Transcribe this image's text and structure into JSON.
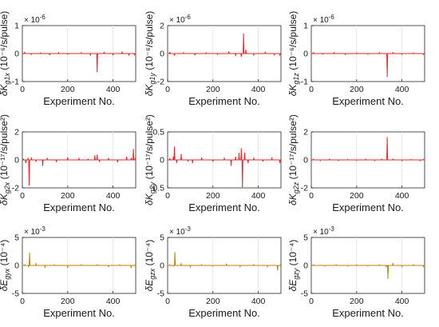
{
  "chart_data": [
    {
      "type": "line",
      "ylabel": {
        "symbol": "δK",
        "sub": "g1x",
        "unit": "(10⁻⁶/s/pulse)"
      },
      "xlabel": "Experiment No.",
      "multiplier": {
        "base": "× 10",
        "exp": "-6"
      },
      "xlim": [
        0,
        500
      ],
      "ylim": [
        -1,
        1
      ],
      "xticks": [
        "0",
        "200",
        "400"
      ],
      "yticks": [
        "1",
        "0",
        "-1"
      ],
      "yticks_values": [
        1,
        0,
        -1
      ],
      "grid": "vertical",
      "color": "#e8272a",
      "series": [
        {
          "x": [
            10,
            40,
            80,
            120,
            160,
            200,
            260,
            300,
            330,
            360,
            400,
            440,
            470,
            495
          ],
          "values": [
            0.04,
            -0.03,
            0.02,
            -0.04,
            0.03,
            -0.02,
            0.03,
            -0.05,
            -0.65,
            0.04,
            -0.04,
            0.05,
            -0.05,
            -0.04
          ]
        }
      ]
    },
    {
      "type": "line",
      "ylabel": {
        "symbol": "δK",
        "sub": "g1y",
        "unit": "(10⁻⁶/s/pulse)"
      },
      "xlabel": "Experiment No.",
      "multiplier": {
        "base": "× 10",
        "exp": "-6"
      },
      "xlim": [
        0,
        500
      ],
      "ylim": [
        -2,
        2
      ],
      "xticks": [
        "0",
        "200",
        "400"
      ],
      "yticks": [
        "2",
        "0",
        "-2"
      ],
      "yticks_values": [
        2,
        0,
        -2
      ],
      "grid": "vertical",
      "color": "#e8272a",
      "series": [
        {
          "x": [
            10,
            30,
            70,
            120,
            170,
            220,
            270,
            300,
            325,
            335,
            345,
            380,
            430,
            470,
            495
          ],
          "values": [
            0.08,
            -0.1,
            0.06,
            -0.08,
            0.05,
            -0.06,
            0.1,
            -0.12,
            -0.2,
            1.4,
            0.25,
            -0.1,
            0.08,
            -0.09,
            -0.1
          ]
        }
      ]
    },
    {
      "type": "line",
      "ylabel": {
        "symbol": "δK",
        "sub": "g1z",
        "unit": "(10⁻⁶/s/pulse)"
      },
      "xlabel": "Experiment No.",
      "multiplier": {
        "base": "× 10",
        "exp": "-6"
      },
      "xlim": [
        0,
        500
      ],
      "ylim": [
        -1,
        1
      ],
      "xticks": [
        "0",
        "200",
        "400"
      ],
      "yticks": [
        "1",
        "0",
        "-1"
      ],
      "yticks_values": [
        1,
        0,
        -1
      ],
      "grid": "vertical",
      "color": "#e8272a",
      "series": [
        {
          "x": [
            10,
            50,
            100,
            150,
            200,
            250,
            300,
            335,
            360,
            400,
            450,
            495
          ],
          "values": [
            0.03,
            -0.02,
            0.03,
            -0.03,
            0.02,
            -0.02,
            0.03,
            -0.82,
            0.03,
            -0.03,
            0.02,
            -0.03
          ]
        }
      ]
    },
    {
      "type": "line",
      "ylabel": {
        "symbol": "δK",
        "sub": "g2x",
        "unit": "(10⁻¹⁷/s/pulse²)"
      },
      "xlabel": "Experiment No.",
      "multiplier": null,
      "xlim": [
        0,
        500
      ],
      "ylim": [
        -2,
        2
      ],
      "xticks": [
        "0",
        "200",
        "400"
      ],
      "yticks": [
        "2",
        "0",
        "-2"
      ],
      "yticks_values": [
        2,
        0,
        -2
      ],
      "grid": "vertical",
      "color": "#e8272a",
      "series": [
        {
          "x": [
            5,
            15,
            25,
            30,
            40,
            60,
            90,
            110,
            150,
            200,
            250,
            290,
            320,
            330,
            340,
            380,
            420,
            460,
            480,
            490,
            498
          ],
          "values": [
            0.05,
            -0.2,
            0.1,
            -1.8,
            0.15,
            -0.1,
            -0.4,
            0.1,
            -0.1,
            0.15,
            0.1,
            0.05,
            0.3,
            0.35,
            -0.1,
            0.1,
            -0.15,
            0.2,
            0.1,
            0.75,
            0.1
          ]
        }
      ]
    },
    {
      "type": "line",
      "ylabel": {
        "symbol": "δK",
        "sub": "g2y",
        "unit": "(10⁻¹⁷/s/pulse²)"
      },
      "xlabel": "Experiment No.",
      "multiplier": null,
      "xlim": [
        0,
        500
      ],
      "ylim": [
        -0.5,
        0.5
      ],
      "xticks": [
        "0",
        "200",
        "400"
      ],
      "yticks": [
        "0.5",
        "0",
        "-0.5"
      ],
      "yticks_values": [
        0.5,
        0,
        -0.5
      ],
      "grid": "vertical",
      "color": "#e8272a",
      "series": [
        {
          "x": [
            10,
            25,
            30,
            40,
            60,
            90,
            110,
            150,
            200,
            250,
            280,
            300,
            315,
            325,
            330,
            340,
            355,
            380,
            420,
            460,
            495
          ],
          "values": [
            0.02,
            0.05,
            0.23,
            -0.05,
            0.1,
            -0.02,
            -0.05,
            0.03,
            -0.02,
            0.03,
            -0.1,
            0.05,
            0.12,
            0.2,
            -0.48,
            0.12,
            -0.05,
            0.03,
            -0.02,
            0.03,
            -0.05
          ]
        }
      ]
    },
    {
      "type": "line",
      "ylabel": {
        "symbol": "δK",
        "sub": "g2z",
        "unit": "(10⁻¹⁷/s/pulse²)"
      },
      "xlabel": "Experiment No.",
      "multiplier": null,
      "xlim": [
        0,
        500
      ],
      "ylim": [
        -2,
        2
      ],
      "xticks": [
        "0",
        "200",
        "400"
      ],
      "yticks": [
        "2",
        "0",
        "-2"
      ],
      "yticks_values": [
        2,
        0,
        -2
      ],
      "grid": "vertical",
      "color": "#e8272a",
      "series": [
        {
          "x": [
            10,
            40,
            80,
            120,
            160,
            200,
            240,
            280,
            310,
            335,
            360,
            400,
            440,
            480,
            495
          ],
          "values": [
            0.05,
            -0.05,
            0.05,
            -0.05,
            0.03,
            -0.03,
            0.05,
            -0.05,
            0.05,
            1.6,
            0.05,
            -0.05,
            0.03,
            -0.05,
            0.03
          ]
        }
      ]
    },
    {
      "type": "line",
      "ylabel": {
        "symbol": "δE",
        "sub": "gyx",
        "unit": "(10⁻⁴)"
      },
      "xlabel": "Experiment No.",
      "multiplier": {
        "base": "× 10",
        "exp": "-3"
      },
      "xlim": [
        0,
        500
      ],
      "ylim": [
        -5,
        5
      ],
      "xticks": [
        "0",
        "200",
        "400"
      ],
      "yticks": [
        "5",
        "0",
        "-5"
      ],
      "yticks_values": [
        5,
        0,
        -5
      ],
      "grid": "vertical",
      "color": "#b8860b",
      "series": [
        {
          "x": [
            10,
            28,
            32,
            60,
            100,
            140,
            200,
            260,
            330,
            380,
            430,
            480,
            498
          ],
          "values": [
            0.1,
            -0.2,
            2.2,
            0.3,
            -0.3,
            0.1,
            -0.3,
            0.1,
            0.1,
            -0.2,
            0.1,
            -0.4,
            0.1
          ]
        }
      ]
    },
    {
      "type": "line",
      "ylabel": {
        "symbol": "δE",
        "sub": "gzx",
        "unit": "(10⁻⁴)"
      },
      "xlabel": "Experiment No.",
      "multiplier": {
        "base": "× 10",
        "exp": "-3"
      },
      "xlim": [
        0,
        500
      ],
      "ylim": [
        -5,
        5
      ],
      "xticks": [
        "0",
        "200",
        "400"
      ],
      "yticks": [
        "5",
        "0",
        "-5"
      ],
      "yticks_values": [
        5,
        0,
        -5
      ],
      "grid": "vertical",
      "color": "#b8860b",
      "series": [
        {
          "x": [
            10,
            25,
            32,
            60,
            100,
            150,
            200,
            260,
            320,
            380,
            440,
            485,
            498
          ],
          "values": [
            0.1,
            -0.1,
            2.3,
            0.3,
            -0.2,
            0.1,
            -0.1,
            0.2,
            -0.2,
            0.1,
            -0.2,
            -0.8,
            0.1
          ]
        }
      ]
    },
    {
      "type": "line",
      "ylabel": {
        "symbol": "δE",
        "sub": "gzy",
        "unit": "(10⁻⁴)"
      },
      "xlabel": "Experiment No.",
      "multiplier": {
        "base": "× 10",
        "exp": "-3"
      },
      "xlim": [
        0,
        500
      ],
      "ylim": [
        -5,
        5
      ],
      "xticks": [
        "0",
        "200",
        "400"
      ],
      "yticks": [
        "5",
        "0",
        "-5"
      ],
      "yticks_values": [
        5,
        0,
        -5
      ],
      "grid": "vertical",
      "color": "#b8860b",
      "series": [
        {
          "x": [
            10,
            60,
            110,
            160,
            200,
            250,
            300,
            330,
            338,
            360,
            400,
            450,
            495
          ],
          "values": [
            0.1,
            -0.1,
            0.1,
            -0.1,
            0.1,
            -0.1,
            0.1,
            -0.2,
            -2.3,
            0.3,
            -0.2,
            0.1,
            -0.2
          ]
        }
      ]
    }
  ]
}
